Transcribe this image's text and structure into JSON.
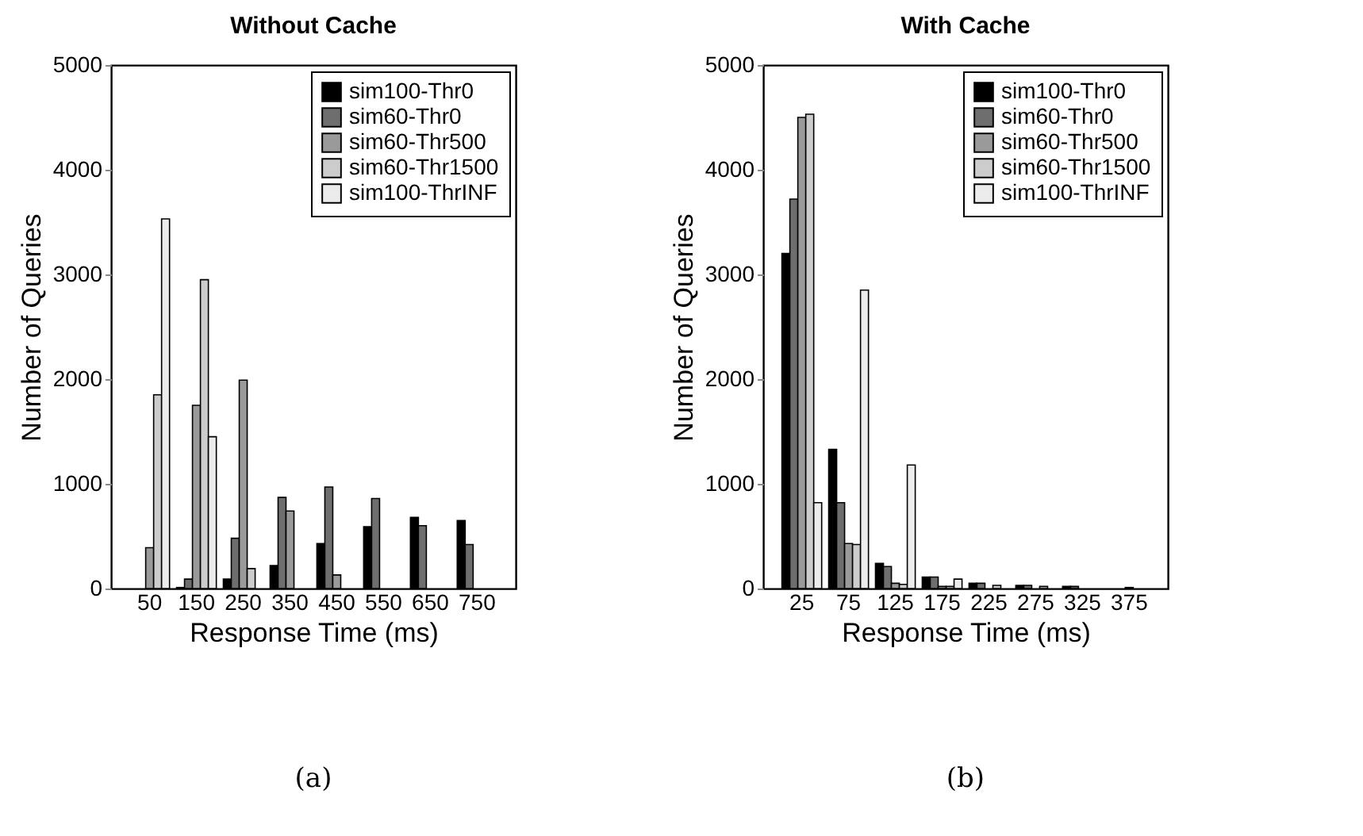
{
  "chart_data": [
    {
      "type": "bar",
      "title": "Without Cache",
      "xlabel": "Response Time (ms)",
      "ylabel": "Number of Queries",
      "categories": [
        "50",
        "150",
        "250",
        "350",
        "450",
        "550",
        "650",
        "750"
      ],
      "series": [
        {
          "name": "sim100-Thr0",
          "color": "#000000",
          "values": [
            0,
            10,
            90,
            220,
            430,
            590,
            680,
            650
          ]
        },
        {
          "name": "sim60-Thr0",
          "color": "#6e6e6e",
          "values": [
            0,
            90,
            480,
            870,
            970,
            860,
            600,
            420
          ]
        },
        {
          "name": "sim60-Thr500",
          "color": "#9a9a9a",
          "values": [
            390,
            1750,
            1990,
            740,
            130,
            null,
            0,
            0
          ]
        },
        {
          "name": "sim60-Thr1500",
          "color": "#cccccc",
          "values": [
            1850,
            2950,
            190,
            0,
            0,
            0,
            0,
            0
          ]
        },
        {
          "name": "sim100-ThrINF",
          "color": "#ececec",
          "values": [
            3530,
            1450,
            0,
            0,
            0,
            0,
            0,
            0
          ]
        }
      ],
      "ylim": [
        0,
        5000
      ],
      "yticks": [
        0,
        1000,
        2000,
        3000,
        4000,
        5000
      ],
      "grid": false,
      "legend": "top right",
      "annotations": [
        "(a)"
      ]
    },
    {
      "type": "bar",
      "title": "With Cache",
      "xlabel": "Response Time (ms)",
      "ylabel": "Number of Queries",
      "categories": [
        "25",
        "75",
        "125",
        "175",
        "225",
        "275",
        "325",
        "375"
      ],
      "series": [
        {
          "name": "sim100-Thr0",
          "color": "#000000",
          "values": [
            3200,
            1330,
            240,
            110,
            50,
            30,
            20,
            0
          ]
        },
        {
          "name": "sim60-Thr0",
          "color": "#6e6e6e",
          "values": [
            3720,
            820,
            210,
            110,
            50,
            30,
            20,
            0
          ]
        },
        {
          "name": "sim60-Thr500",
          "color": "#9a9a9a",
          "values": [
            4500,
            430,
            50,
            20,
            null,
            null,
            0,
            10
          ]
        },
        {
          "name": "sim60-Thr1500",
          "color": "#cccccc",
          "values": [
            4530,
            420,
            40,
            20,
            30,
            20,
            0,
            0
          ]
        },
        {
          "name": "sim100-ThrINF",
          "color": "#ececec",
          "values": [
            820,
            2850,
            1180,
            90,
            0,
            0,
            0,
            0
          ]
        }
      ],
      "ylim": [
        0,
        5000
      ],
      "yticks": [
        0,
        1000,
        2000,
        3000,
        4000,
        5000
      ],
      "grid": false,
      "legend": "top right",
      "annotations": [
        "(b)"
      ]
    }
  ]
}
